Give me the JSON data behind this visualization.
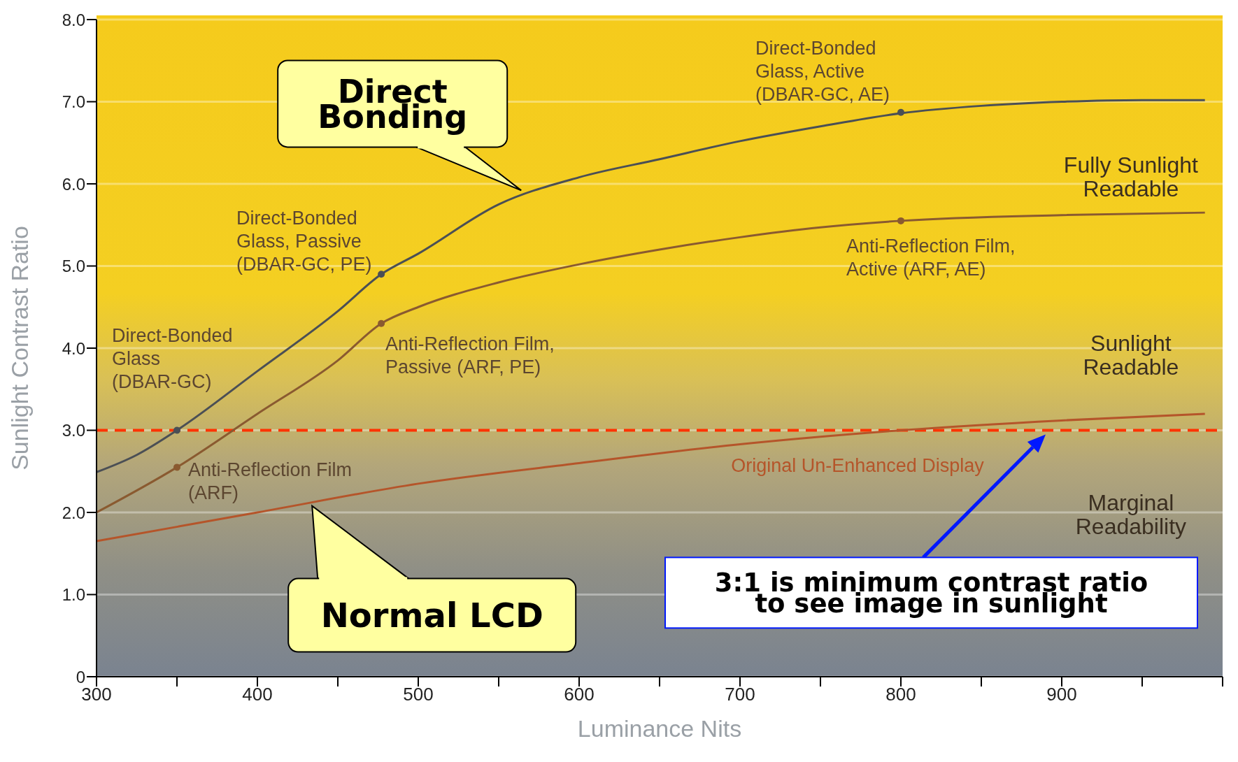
{
  "chart_data": {
    "type": "line",
    "xlabel": "Luminance Nits",
    "ylabel": "Sunlight Contrast Ratio",
    "xlim": [
      300,
      1000
    ],
    "xticks": [
      300,
      {
        "value": 350,
        "label": null
      },
      400,
      {
        "value": 450,
        "label": null
      },
      500,
      {
        "value": 550,
        "label": null
      },
      600,
      {
        "value": 650,
        "label": null
      },
      700,
      {
        "value": 750,
        "label": null
      },
      800,
      {
        "value": 850,
        "label": null
      },
      900,
      {
        "value": 950,
        "label": null
      },
      {
        "value": 1000,
        "label": null
      }
    ],
    "ylim": [
      0,
      8
    ],
    "yticks": [
      0,
      {
        "value": 1,
        "label": "1.0"
      },
      {
        "value": 2,
        "label": "2.0"
      },
      {
        "value": 3,
        "label": "3.0"
      },
      {
        "value": 4,
        "label": "4.0"
      },
      {
        "value": 5,
        "label": "5.0"
      },
      {
        "value": 6,
        "label": "6.0"
      },
      {
        "value": 7,
        "label": "7.0"
      },
      {
        "value": 8,
        "label": "8.0"
      }
    ],
    "grid": "y",
    "legend": false,
    "marker": "none",
    "line_style": "solid",
    "series": [
      {
        "color": "#4b4f55",
        "x": [
          300,
          325,
          350,
          400,
          450,
          477,
          500,
          550,
          600,
          650,
          700,
          750,
          800,
          850,
          900,
          950,
          989
        ],
        "values": [
          2.49,
          2.7,
          3.0,
          3.72,
          4.45,
          4.9,
          5.15,
          5.75,
          6.08,
          6.3,
          6.52,
          6.7,
          6.86,
          6.95,
          7.0,
          7.02,
          7.02
        ]
      },
      {
        "color": "#8a5a30",
        "x": [
          300,
          350,
          400,
          450,
          477,
          500,
          550,
          600,
          650,
          700,
          750,
          800,
          900,
          989
        ],
        "values": [
          2.0,
          2.55,
          3.2,
          3.85,
          4.3,
          4.5,
          4.8,
          5.02,
          5.2,
          5.35,
          5.47,
          5.55,
          5.62,
          5.65
        ]
      },
      {
        "name": "Original Un-Enhanced Display",
        "color": "#b5552a",
        "x": [
          300,
          400,
          500,
          600,
          700,
          800,
          900,
          989
        ],
        "values": [
          1.65,
          2.0,
          2.35,
          2.6,
          2.83,
          3.0,
          3.12,
          3.2
        ]
      },
      {
        "type": "scatter",
        "color": "#4b4f55",
        "marker": "circle",
        "x": [
          350,
          477,
          800
        ],
        "values": [
          3.0,
          4.9,
          6.87
        ]
      },
      {
        "type": "scatter",
        "color": "#8a5a30",
        "marker": "circle",
        "x": [
          350,
          477,
          800
        ],
        "values": [
          2.55,
          4.3,
          5.55
        ]
      }
    ],
    "ref_lines": [
      {
        "axis": "y",
        "value": 3,
        "color": "#ff3300",
        "line_style": "dashed"
      }
    ],
    "annotations": [
      {
        "text": "Direct-Bonded\nGlass\n(DBAR-GC)",
        "x": 350,
        "y": 3.0
      },
      {
        "text": "Direct-Bonded\nGlass, Passive\n(DBAR-GC, PE)",
        "x": 477,
        "y": 4.9
      },
      {
        "text": "Direct-Bonded\nGlass, Active\n(DBAR-GC, AE)",
        "x": 800,
        "y": 6.87
      },
      {
        "text": "Anti-Reflection Film\n(ARF)",
        "x": 350,
        "y": 2.55
      },
      {
        "text": "Anti-Reflection Film,\nPassive (ARF, PE)",
        "x": 477,
        "y": 4.3
      },
      {
        "text": "Anti-Reflection Film,\nActive (ARF, AE)",
        "x": 800,
        "y": 5.55
      },
      {
        "text": "Direct\nBonding",
        "x": 564,
        "y": 5.92
      },
      {
        "text": "Normal LCD",
        "x": 434,
        "y": 2.08
      },
      "3:1 is minimum contrast ratio\nto see image in sunlight",
      "Fully Sunlight\nReadable",
      "Sunlight\nReadable",
      "Marginal\nReadability"
    ]
  }
}
